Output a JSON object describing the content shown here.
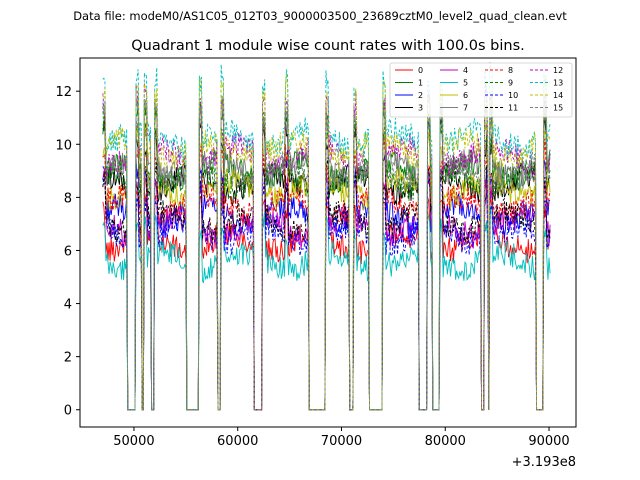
{
  "chart_data": {
    "type": "line",
    "file_label": "Data file: modeM0/AS1C05_012T03_9000003500_23689cztM0_level2_quad_clean.evt",
    "title": "Quadrant 1 module wise count rates with 100.0s bins.",
    "xlabel": "",
    "ylabel": "",
    "x_offset_label": "+3.193e8",
    "xlim": [
      44800,
      92600
    ],
    "ylim": [
      -0.65,
      13.25
    ],
    "x_ticks": [
      50000,
      60000,
      70000,
      80000,
      90000
    ],
    "x_tick_labels": [
      "50000",
      "60000",
      "70000",
      "80000",
      "90000"
    ],
    "y_ticks": [
      0,
      2,
      4,
      6,
      8,
      10,
      12
    ],
    "y_tick_labels": [
      "0",
      "2",
      "4",
      "6",
      "8",
      "10",
      "12"
    ],
    "bin_size_s": 100,
    "legend_position": "upper right",
    "data_segments": [
      [
        47000,
        49300
      ],
      [
        50200,
        50700
      ],
      [
        51000,
        51600
      ],
      [
        52000,
        55000
      ],
      [
        56300,
        58000
      ],
      [
        58400,
        61500
      ],
      [
        62400,
        64500
      ],
      [
        64600,
        66800
      ],
      [
        68500,
        70700
      ],
      [
        71200,
        72600
      ],
      [
        74000,
        77400
      ],
      [
        78300,
        78700
      ],
      [
        79500,
        83400
      ],
      [
        83800,
        84100
      ],
      [
        84300,
        88700
      ],
      [
        89500,
        90100
      ]
    ],
    "series": [
      {
        "name": "0",
        "color": "#ff0000",
        "style": "solid",
        "level": 6.3
      },
      {
        "name": "1",
        "color": "#008000",
        "style": "solid",
        "level": 9.0
      },
      {
        "name": "2",
        "color": "#0000ff",
        "style": "solid",
        "level": 7.3
      },
      {
        "name": "3",
        "color": "#000000",
        "style": "solid",
        "level": 8.5
      },
      {
        "name": "4",
        "color": "#bf00bf",
        "style": "solid",
        "level": 6.9
      },
      {
        "name": "5",
        "color": "#00bfbf",
        "style": "solid",
        "level": 5.6
      },
      {
        "name": "6",
        "color": "#bfbf00",
        "style": "solid",
        "level": 8.3
      },
      {
        "name": "7",
        "color": "#808080",
        "style": "solid",
        "level": 9.1
      },
      {
        "name": "8",
        "color": "#ff0000",
        "style": "dashed",
        "level": 7.7
      },
      {
        "name": "9",
        "color": "#008000",
        "style": "dashed",
        "level": 8.7
      },
      {
        "name": "10",
        "color": "#0000ff",
        "style": "dashed",
        "level": 6.6
      },
      {
        "name": "11",
        "color": "#000000",
        "style": "dashed",
        "level": 7.1
      },
      {
        "name": "12",
        "color": "#bf00bf",
        "style": "dashed",
        "level": 9.6
      },
      {
        "name": "13",
        "color": "#00bfbf",
        "style": "dashed",
        "level": 10.2
      },
      {
        "name": "14",
        "color": "#bfbf00",
        "style": "dashed",
        "level": 9.8
      },
      {
        "name": "15",
        "color": "#808080",
        "style": "dashed",
        "level": 8.9
      }
    ]
  }
}
